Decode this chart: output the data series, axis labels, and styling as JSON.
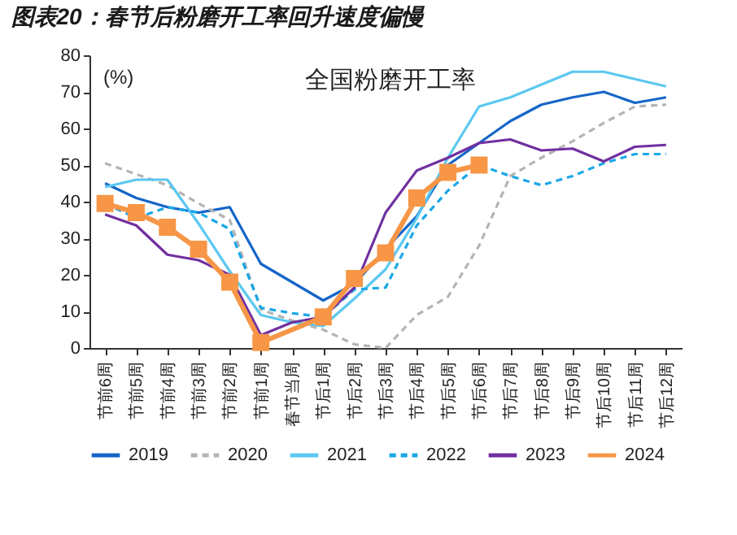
{
  "chart_data": {
    "type": "line",
    "title": "图表20：春节后粉磨开工率回升速度偏慢",
    "ylabel": "(%)",
    "annotations": [
      "全国粉磨开工率"
    ],
    "categories": [
      "节前6周",
      "节前5周",
      "节前4周",
      "节前3周",
      "节前2周",
      "节前1周",
      "春节当周",
      "节后1周",
      "节后2周",
      "节后3周",
      "节后4周",
      "节后5周",
      "节后6周",
      "节后7周",
      "节后8周",
      "节后9周",
      "节后10周",
      "节后11周",
      "节后12周"
    ],
    "ylim": [
      0,
      80
    ],
    "yticks": [
      0,
      10,
      20,
      30,
      40,
      50,
      60,
      70,
      80
    ],
    "grid": false,
    "legend": "bottom",
    "series": [
      {
        "name": "2019",
        "color": "#1565c8",
        "line_style": "solid",
        "values": [
          45,
          41,
          38.5,
          37,
          38.5,
          23,
          18,
          13,
          17.5,
          27,
          36,
          50,
          56,
          62,
          66.5,
          68.5,
          70,
          67,
          68.5
        ]
      },
      {
        "name": "2020",
        "color": "#b4b4b4",
        "line_style": "dashed",
        "values": [
          50.5,
          47.5,
          44.5,
          39.5,
          35,
          10.5,
          7.5,
          5,
          1,
          0,
          9,
          14,
          28,
          47,
          52,
          56.5,
          61.5,
          66,
          66.5
        ]
      },
      {
        "name": "2021",
        "color": "#5bc8f0",
        "line_style": "solid",
        "values": [
          44,
          46,
          46,
          34,
          21,
          9,
          7,
          6,
          13.5,
          21.5,
          35.5,
          52,
          66,
          68.5,
          72,
          75.5,
          75.5,
          73.5,
          71.5
        ]
      },
      {
        "name": "2022",
        "color": "#1aa7e8",
        "line_style": "dashed",
        "values": [
          39.5,
          35.5,
          38.5,
          37,
          32.5,
          11,
          9.5,
          8.5,
          16,
          16.5,
          33.5,
          43,
          50,
          47,
          44.5,
          47,
          50.5,
          53,
          53
        ]
      },
      {
        "name": "2023",
        "color": "#7030a0",
        "line_style": "solid",
        "values": [
          36.5,
          33.5,
          25.5,
          24,
          20,
          3.5,
          7,
          8.5,
          16.5,
          37,
          48.5,
          52,
          56,
          57,
          54,
          54.5,
          51,
          55,
          55.5
        ]
      },
      {
        "name": "2024",
        "color": "#f79646",
        "line_style": "solid",
        "marker": "square",
        "x": [
          "节前6周",
          "节前5周",
          "节前4周",
          "节前3周",
          "节前2周",
          "节前1周",
          "节后1周",
          "节后2周",
          "节后3周",
          "节后4周",
          "节后5周",
          "节后6周"
        ],
        "values": [
          39.5,
          37,
          33,
          27,
          18,
          1.5,
          8.5,
          19,
          26,
          41,
          48,
          50
        ]
      }
    ]
  }
}
